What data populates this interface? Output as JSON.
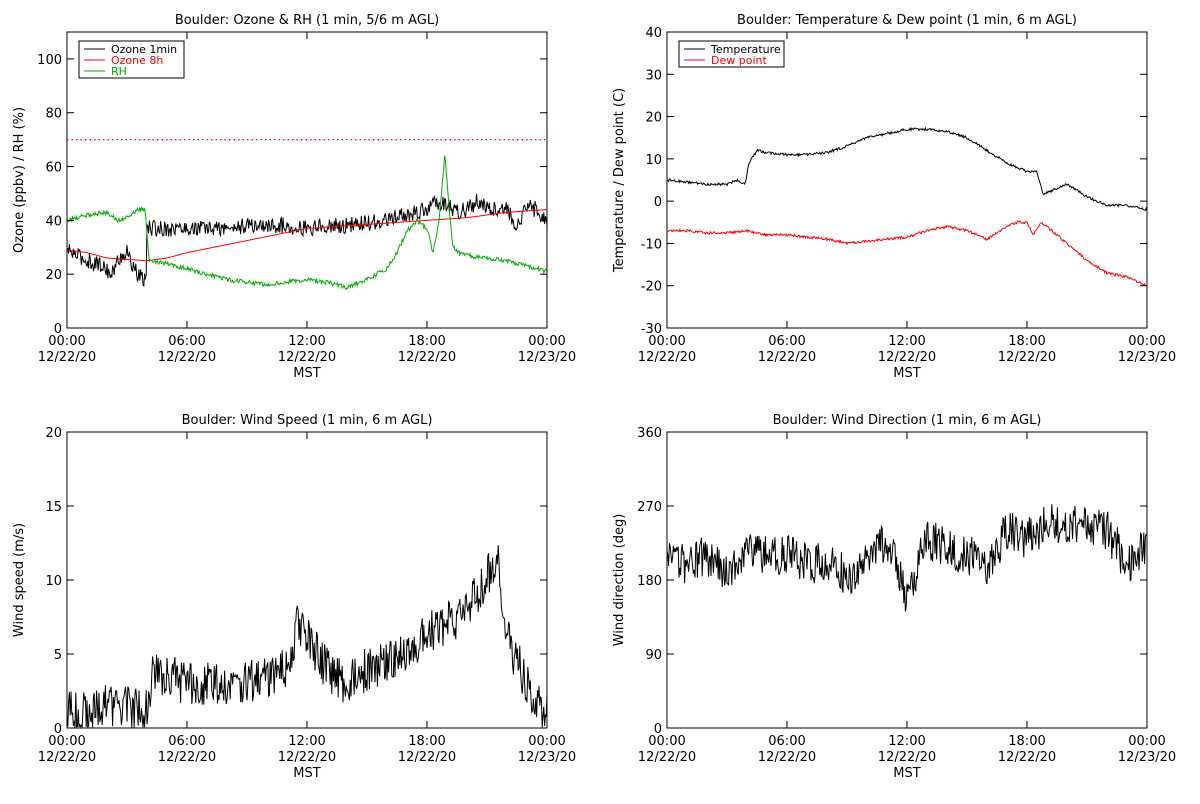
{
  "chart_data": [
    {
      "id": "ozone-rh",
      "type": "line",
      "title": "Boulder: Ozone & RH (1 min, 5/6 m AGL)",
      "xlabel": "MST",
      "ylabel": "Ozone (ppbv) / RH (%)",
      "xlim": [
        0,
        24
      ],
      "ylim": [
        0,
        110
      ],
      "xticks": [
        {
          "v": 0,
          "t1": "00:00",
          "t2": "12/22/20"
        },
        {
          "v": 6,
          "t1": "06:00",
          "t2": "12/22/20"
        },
        {
          "v": 12,
          "t1": "12:00",
          "t2": "12/22/20"
        },
        {
          "v": 18,
          "t1": "18:00",
          "t2": "12/22/20"
        },
        {
          "v": 24,
          "t1": "00:00",
          "t2": "12/23/20"
        }
      ],
      "yticks": [
        0,
        20,
        40,
        60,
        80,
        100
      ],
      "legend": {
        "position": "top-left",
        "entries": [
          "Ozone 1min",
          "Ozone 8h",
          "RH"
        ]
      },
      "reference_line": {
        "y": 70,
        "style": "dotted",
        "color": "#ff0000"
      },
      "series": [
        {
          "name": "Ozone 1min",
          "color": "#000000",
          "noise": 3,
          "x": [
            0,
            0.5,
            1,
            1.5,
            2,
            2.2,
            2.6,
            3,
            3.5,
            3.8,
            3.95,
            4.0,
            5,
            6,
            7,
            8,
            9,
            10,
            11,
            12,
            13,
            14,
            15,
            16,
            17,
            18,
            18.5,
            19,
            19.5,
            20,
            20.5,
            21,
            22,
            22.5,
            23,
            23.5,
            24
          ],
          "y": [
            29,
            27,
            25,
            24,
            22,
            19,
            26,
            28,
            20,
            18,
            18,
            37,
            37,
            37,
            37,
            37,
            38,
            38,
            38,
            37,
            38,
            38,
            39,
            40,
            42,
            44,
            47,
            46,
            43,
            44,
            47,
            45,
            44,
            38,
            45,
            44,
            40
          ]
        },
        {
          "name": "Ozone 8h",
          "color": "#ff0000",
          "noise": 0,
          "x": [
            0,
            1,
            2,
            3,
            4,
            5,
            6,
            8,
            10,
            12,
            14,
            16,
            18,
            20,
            22,
            24
          ],
          "y": [
            29,
            28,
            26,
            25.5,
            25,
            26,
            28,
            31,
            34,
            37,
            38,
            39,
            40,
            41,
            43,
            44
          ]
        },
        {
          "name": "RH",
          "color": "#00aa00",
          "noise": 0.8,
          "x": [
            0,
            1,
            2,
            2.5,
            3,
            3.5,
            3.9,
            4.1,
            5,
            6,
            7,
            8,
            9,
            10,
            11,
            12,
            13,
            14,
            15,
            16,
            16.5,
            17,
            17.5,
            18,
            18.3,
            18.6,
            18.9,
            19.1,
            19.3,
            19.6,
            20,
            21,
            22,
            23,
            24
          ],
          "y": [
            40,
            42,
            43,
            40,
            41,
            44,
            44,
            25,
            24,
            22,
            20,
            18,
            17,
            16,
            17,
            18,
            17,
            15,
            18,
            22,
            28,
            36,
            40,
            37,
            28,
            40,
            65,
            45,
            30,
            28,
            27,
            26,
            25,
            23,
            21
          ]
        }
      ]
    },
    {
      "id": "temp-dewpoint",
      "type": "line",
      "title": "Boulder: Temperature & Dew point (1 min, 6 m AGL)",
      "xlabel": "MST",
      "ylabel": "Temperature / Dew point (C)",
      "xlim": [
        0,
        24
      ],
      "ylim": [
        -30,
        40
      ],
      "xticks": [
        {
          "v": 0,
          "t1": "00:00",
          "t2": "12/22/20"
        },
        {
          "v": 6,
          "t1": "06:00",
          "t2": "12/22/20"
        },
        {
          "v": 12,
          "t1": "12:00",
          "t2": "12/22/20"
        },
        {
          "v": 18,
          "t1": "18:00",
          "t2": "12/22/20"
        },
        {
          "v": 24,
          "t1": "00:00",
          "t2": "12/23/20"
        }
      ],
      "yticks": [
        -30,
        -20,
        -10,
        0,
        10,
        20,
        30,
        40
      ],
      "legend": {
        "position": "top-left",
        "entries": [
          "Temperature",
          "Dew point"
        ]
      },
      "series": [
        {
          "name": "Temperature",
          "color": "#000000",
          "noise": 0.3,
          "x": [
            0,
            1,
            2,
            3,
            3.5,
            3.9,
            4.1,
            4.5,
            5,
            6,
            7,
            8,
            9,
            10,
            11,
            12,
            13,
            14,
            15,
            16,
            17,
            18,
            18.5,
            18.8,
            19,
            20,
            21,
            22,
            23,
            24
          ],
          "y": [
            5,
            4.5,
            4,
            4,
            5,
            4,
            9,
            12,
            11.5,
            11,
            11,
            11.5,
            13,
            15,
            16,
            17,
            17,
            16.5,
            15,
            12,
            9,
            7,
            7,
            1.5,
            2,
            4,
            1,
            -1,
            -1,
            -2
          ]
        },
        {
          "name": "Dew point",
          "color": "#ff0000",
          "noise": 0.3,
          "x": [
            0,
            1,
            2,
            3,
            4,
            5,
            6,
            7,
            8,
            9,
            10,
            11,
            12,
            13,
            14,
            15,
            16,
            17,
            17.5,
            18,
            18.3,
            18.7,
            19,
            20,
            21,
            22,
            23,
            24
          ],
          "y": [
            -7,
            -7,
            -7.5,
            -7.5,
            -7,
            -8,
            -8,
            -8.5,
            -9,
            -10,
            -9.5,
            -9,
            -8.5,
            -7,
            -6,
            -7,
            -9,
            -6,
            -5,
            -5,
            -8,
            -5,
            -6,
            -10,
            -14,
            -17,
            -18,
            -20
          ]
        }
      ]
    },
    {
      "id": "wind-speed",
      "type": "line",
      "title": "Boulder: Wind Speed (1 min, 6 m AGL)",
      "xlabel": "MST",
      "ylabel": "Wind speed (m/s)",
      "xlim": [
        0,
        24
      ],
      "ylim": [
        0,
        20
      ],
      "xticks": [
        {
          "v": 0,
          "t1": "00:00",
          "t2": "12/22/20"
        },
        {
          "v": 6,
          "t1": "06:00",
          "t2": "12/22/20"
        },
        {
          "v": 12,
          "t1": "12:00",
          "t2": "12/22/20"
        },
        {
          "v": 18,
          "t1": "18:00",
          "t2": "12/22/20"
        },
        {
          "v": 24,
          "t1": "00:00",
          "t2": "12/23/20"
        }
      ],
      "yticks": [
        0,
        5,
        10,
        15,
        20
      ],
      "series": [
        {
          "name": "",
          "color": "#000000",
          "noise": 1.5,
          "x": [
            0,
            1,
            2,
            3,
            3.9,
            4.3,
            5,
            6,
            7,
            8,
            9,
            10,
            11,
            11.5,
            12,
            13,
            14,
            15,
            16,
            17,
            18,
            19,
            20,
            21,
            21.5,
            22,
            23,
            24
          ],
          "y": [
            1,
            1,
            1.5,
            1.5,
            1,
            3.5,
            3.5,
            3,
            3,
            3,
            3,
            3.5,
            4,
            7,
            6,
            4,
            3,
            4,
            4.5,
            5,
            6.5,
            7,
            8,
            10,
            12,
            6,
            3,
            1
          ]
        }
      ]
    },
    {
      "id": "wind-direction",
      "type": "line",
      "title": "Boulder: Wind Direction (1 min, 6 m AGL)",
      "xlabel": "MST",
      "ylabel": "Wind direction (deg)",
      "xlim": [
        0,
        24
      ],
      "ylim": [
        0,
        360
      ],
      "xticks": [
        {
          "v": 0,
          "t1": "00:00",
          "t2": "12/22/20"
        },
        {
          "v": 6,
          "t1": "06:00",
          "t2": "12/22/20"
        },
        {
          "v": 12,
          "t1": "12:00",
          "t2": "12/22/20"
        },
        {
          "v": 18,
          "t1": "18:00",
          "t2": "12/22/20"
        },
        {
          "v": 24,
          "t1": "00:00",
          "t2": "12/23/20"
        }
      ],
      "yticks": [
        0,
        90,
        180,
        270,
        360
      ],
      "series": [
        {
          "name": "",
          "color": "#000000",
          "noise": 25,
          "x": [
            0,
            1,
            2,
            3,
            4,
            5,
            6,
            7,
            8,
            9,
            10,
            11,
            12,
            13,
            14,
            15,
            16,
            17,
            18,
            19,
            20,
            21,
            22,
            23,
            24
          ],
          "y": [
            200,
            200,
            210,
            190,
            220,
            210,
            210,
            200,
            200,
            185,
            200,
            230,
            160,
            230,
            220,
            210,
            200,
            240,
            230,
            250,
            250,
            250,
            240,
            200,
            220
          ]
        }
      ]
    }
  ]
}
